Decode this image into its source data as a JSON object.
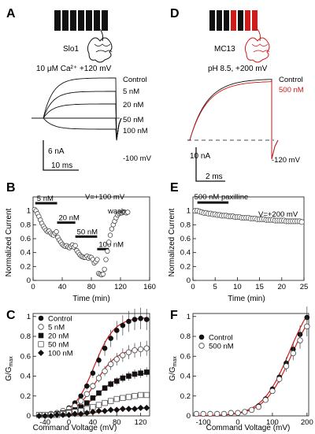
{
  "colors": {
    "black": "#111111",
    "red": "#d11a1a",
    "gray": "#888888"
  },
  "panels": {
    "A": "A",
    "B": "B",
    "C": "C",
    "D": "D",
    "E": "E",
    "F": "F"
  },
  "panelA": {
    "channel": "Slo1",
    "condition": "10 μM Ca²⁺ +120 mV",
    "traces": [
      "Control",
      "5 nM",
      "20 nM",
      "50 nM",
      "100 nM"
    ],
    "tail_voltage": "-100 mV",
    "scalebar_current": "6 nA",
    "scalebar_time": "10 ms"
  },
  "panelD": {
    "channel": "MC13",
    "condition": "pH 8.5, +200 mV",
    "traces": [
      "Control",
      "500 nM"
    ],
    "tail_voltage": "-120 mV",
    "scalebar_current": "10 nA",
    "scalebar_time": "2 ms"
  },
  "chart_data": [
    {
      "panel": "B",
      "type": "scatter",
      "xlabel": "Time (min)",
      "ylabel": "Normalized Current",
      "xlim": [
        0,
        160
      ],
      "ylim": [
        0,
        1.2
      ],
      "xticks": [
        0,
        40,
        80,
        120,
        160
      ],
      "yticks": [
        0,
        0.2,
        0.4,
        0.6,
        0.8,
        1
      ],
      "annotation": "V=+100 mV",
      "wash_label": "wash",
      "bars": [
        {
          "label": "5 nM",
          "x": [
            3,
            33
          ],
          "y": 1.11
        },
        {
          "label": "20 nM",
          "x": [
            33,
            58
          ],
          "y": 0.83
        },
        {
          "label": "50 nM",
          "x": [
            58,
            88
          ],
          "y": 0.63
        },
        {
          "label": "100 nM",
          "x": [
            88,
            104
          ],
          "y": 0.45
        }
      ],
      "x": [
        2,
        4,
        6,
        8,
        10,
        12,
        14,
        16,
        18,
        20,
        22,
        24,
        26,
        28,
        30,
        32,
        34,
        36,
        38,
        40,
        42,
        44,
        46,
        48,
        50,
        52,
        54,
        56,
        58,
        60,
        62,
        64,
        66,
        68,
        70,
        72,
        74,
        76,
        78,
        80,
        82,
        84,
        86,
        88,
        90,
        92,
        94,
        96,
        98,
        100,
        102,
        104,
        106,
        108,
        110,
        112,
        114,
        116,
        118,
        120,
        122,
        124,
        126,
        128,
        130
      ],
      "y": [
        1.02,
        1.0,
        0.96,
        0.92,
        0.87,
        0.82,
        0.78,
        0.75,
        0.72,
        0.7,
        0.71,
        0.68,
        0.66,
        0.65,
        0.68,
        0.7,
        0.62,
        0.58,
        0.55,
        0.52,
        0.5,
        0.49,
        0.5,
        0.48,
        0.47,
        0.49,
        0.51,
        0.48,
        0.5,
        0.43,
        0.4,
        0.37,
        0.35,
        0.34,
        0.33,
        0.33,
        0.35,
        0.32,
        0.34,
        0.33,
        0.3,
        0.25,
        0.27,
        0.3,
        0.1,
        0.09,
        0.08,
        0.09,
        0.16,
        0.3,
        0.42,
        0.55,
        0.65,
        0.74,
        0.8,
        0.85,
        0.9,
        0.94,
        0.96,
        0.97,
        0.97,
        0.98,
        0.98,
        0.97,
        0.98
      ]
    },
    {
      "panel": "E",
      "type": "scatter",
      "xlabel": "Time (min)",
      "ylabel": "Normalized Current",
      "xlim": [
        0,
        25
      ],
      "ylim": [
        0,
        1.2
      ],
      "xticks": [
        0,
        5,
        10,
        15,
        20,
        25
      ],
      "yticks": [
        0,
        0.2,
        0.4,
        0.6,
        0.8,
        1
      ],
      "annotation": "V=+200 mV",
      "bars": [
        {
          "label": "500 nM paxilline",
          "x": [
            1,
            8
          ],
          "y": 1.12
        }
      ],
      "x": [
        0.5,
        1,
        1.5,
        2,
        2.5,
        3,
        3.5,
        4,
        4.5,
        5,
        5.5,
        6,
        6.5,
        7,
        7.5,
        8,
        8.5,
        9,
        9.5,
        10,
        10.5,
        11,
        11.5,
        12,
        12.5,
        13,
        13.5,
        14,
        14.5,
        15,
        15.5,
        16,
        16.5,
        17,
        17.5,
        18,
        18.5,
        19,
        19.5,
        20,
        20.5,
        21,
        21.5,
        22,
        22.5,
        23,
        23.5,
        24,
        24.5
      ],
      "y": [
        1.0,
        1.0,
        0.99,
        0.98,
        0.97,
        0.97,
        0.96,
        0.96,
        0.95,
        0.95,
        0.94,
        0.94,
        0.93,
        0.93,
        0.93,
        0.92,
        0.92,
        0.92,
        0.91,
        0.91,
        0.91,
        0.9,
        0.9,
        0.9,
        0.9,
        0.89,
        0.89,
        0.89,
        0.88,
        0.88,
        0.88,
        0.88,
        0.87,
        0.87,
        0.87,
        0.87,
        0.86,
        0.86,
        0.86,
        0.86,
        0.86,
        0.85,
        0.85,
        0.85,
        0.85,
        0.85,
        0.85,
        0.85,
        0.84
      ]
    },
    {
      "panel": "C",
      "type": "line",
      "xlabel": "Command Voltage (mV)",
      "ylabel": "G/G",
      "ylabel_sub": "max",
      "xlim": [
        -60,
        135
      ],
      "ylim": [
        0,
        1.03
      ],
      "xticks": [
        -40,
        0,
        40,
        80,
        120
      ],
      "yticks": [
        0,
        0.2,
        0.4,
        0.6,
        0.8,
        1
      ],
      "x": [
        -50,
        -40,
        -30,
        -20,
        -10,
        0,
        10,
        20,
        30,
        40,
        50,
        60,
        70,
        80,
        90,
        100,
        110,
        120,
        130
      ],
      "series": [
        {
          "name": "Control",
          "marker": "filled-circle",
          "values": [
            0.01,
            0.01,
            0.02,
            0.03,
            0.05,
            0.08,
            0.13,
            0.2,
            0.3,
            0.43,
            0.56,
            0.68,
            0.78,
            0.86,
            0.91,
            0.95,
            0.97,
            0.98,
            0.97
          ],
          "fit_vhalf": 42,
          "fit_k": 17,
          "fit_max": 0.99
        },
        {
          "name": "5 nM",
          "marker": "open-circle",
          "values": [
            0.01,
            0.01,
            0.02,
            0.03,
            0.05,
            0.07,
            0.1,
            0.15,
            0.22,
            0.3,
            0.38,
            0.45,
            0.52,
            0.57,
            0.61,
            0.64,
            0.66,
            0.67,
            0.68
          ],
          "fit_vhalf": 45,
          "fit_k": 18,
          "fit_max": 0.68
        },
        {
          "name": "20 nM",
          "marker": "filled-square",
          "values": [
            0.01,
            0.01,
            0.01,
            0.02,
            0.03,
            0.04,
            0.06,
            0.09,
            0.13,
            0.18,
            0.23,
            0.28,
            0.32,
            0.35,
            0.38,
            0.4,
            0.42,
            0.43,
            0.44
          ],
          "fit_vhalf": 48,
          "fit_k": 19,
          "fit_max": 0.43
        },
        {
          "name": "50 nM",
          "marker": "open-square",
          "values": [
            0.01,
            0.01,
            0.01,
            0.01,
            0.02,
            0.03,
            0.04,
            0.05,
            0.07,
            0.09,
            0.11,
            0.13,
            0.15,
            0.17,
            0.18,
            0.19,
            0.2,
            0.21,
            0.21
          ],
          "fit_vhalf": 50,
          "fit_k": 20,
          "fit_max": 0.21
        },
        {
          "name": "100 nM",
          "marker": "filled-diamond",
          "values": [
            0.0,
            0.0,
            0.0,
            0.01,
            0.01,
            0.01,
            0.02,
            0.02,
            0.03,
            0.04,
            0.05,
            0.05,
            0.06,
            0.06,
            0.07,
            0.07,
            0.07,
            0.08,
            0.08
          ],
          "fit_vhalf": 52,
          "fit_k": 22,
          "fit_max": 0.08
        }
      ]
    },
    {
      "panel": "F",
      "type": "line",
      "xlabel": "Command Voltage (mV)",
      "ylabel": "G/G",
      "ylabel_sub": "max",
      "xlim": [
        -130,
        205
      ],
      "ylim": [
        0,
        1.03
      ],
      "xticks": [
        -100,
        0,
        100,
        200
      ],
      "yticks": [
        0,
        0.2,
        0.4,
        0.6,
        0.8,
        1
      ],
      "x": [
        -120,
        -100,
        -80,
        -60,
        -40,
        -20,
        0,
        20,
        40,
        60,
        80,
        100,
        120,
        140,
        160,
        180,
        200
      ],
      "series": [
        {
          "name": "Control",
          "marker": "filled-circle",
          "values": [
            0.02,
            0.02,
            0.02,
            0.02,
            0.02,
            0.03,
            0.03,
            0.04,
            0.06,
            0.1,
            0.17,
            0.27,
            0.39,
            0.53,
            0.67,
            0.82,
            0.99
          ],
          "fit_vhalf": 150,
          "fit_k": 40,
          "fit_max": 1.3
        },
        {
          "name": "500 nM",
          "marker": "open-circle",
          "values": [
            0.02,
            0.02,
            0.02,
            0.02,
            0.02,
            0.03,
            0.03,
            0.04,
            0.06,
            0.09,
            0.16,
            0.25,
            0.37,
            0.5,
            0.63,
            0.76,
            0.9
          ],
          "fit_vhalf": 155,
          "fit_k": 40,
          "fit_max": 1.22
        }
      ]
    }
  ]
}
